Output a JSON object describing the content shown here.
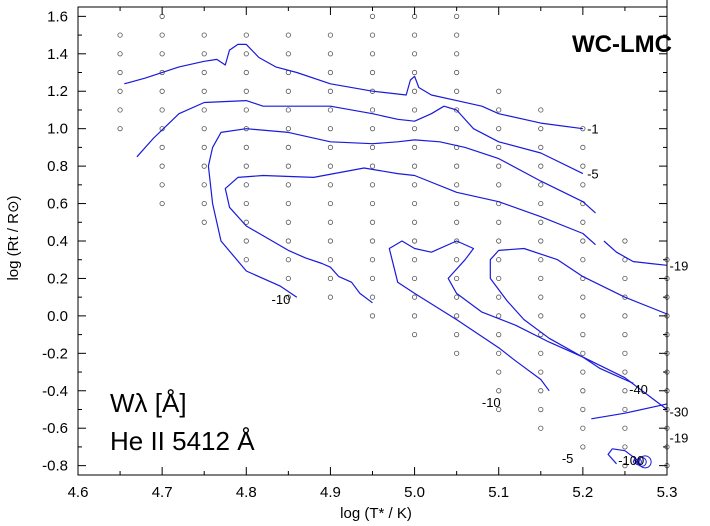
{
  "chart_data": {
    "type": "line",
    "title": "WC-LMC",
    "xlabel": "log (T* / K)",
    "ylabel": "log (Rt / R⊙)",
    "xlim": [
      4.6,
      5.3
    ],
    "ylim": [
      -0.85,
      1.65
    ],
    "xticks": [
      "4.6",
      "4.7",
      "4.8",
      "4.9",
      "5.0",
      "5.1",
      "5.2",
      "5.3"
    ],
    "yticks": [
      "1.6",
      "1.4",
      "1.2",
      "1.0",
      "0.8",
      "0.6",
      "0.4",
      "0.2",
      "0.0",
      "-0.2",
      "-0.4",
      "-0.6",
      "-0.8"
    ],
    "annotations": {
      "quantity": "Wλ [Å]",
      "line": "He II 5412 Å"
    },
    "grid": false,
    "line_color": "#1a1adc",
    "model_marker_color": "#555555",
    "model_grid": {
      "x": [
        4.65,
        4.7,
        4.75,
        4.8,
        4.85,
        4.9,
        4.95,
        5.0,
        5.05,
        5.1,
        5.15,
        5.2,
        5.25,
        5.3
      ],
      "y_range": [
        [
          1.0,
          1.5
        ],
        [
          0.6,
          1.6
        ],
        [
          0.5,
          1.5
        ],
        [
          0.3,
          1.5
        ],
        [
          0.1,
          1.5
        ],
        [
          0.1,
          1.5
        ],
        [
          0.0,
          1.6
        ],
        [
          -0.1,
          1.6
        ],
        [
          -0.2,
          1.6
        ],
        [
          -0.5,
          1.2
        ],
        [
          -0.6,
          1.1
        ],
        [
          -0.7,
          1.0
        ],
        [
          -0.8,
          0.4
        ],
        [
          -0.8,
          0.3
        ]
      ],
      "step": 0.1
    },
    "series": [
      {
        "name": "-1",
        "values": [
          [
            4.655,
            1.24
          ],
          [
            4.68,
            1.27
          ],
          [
            4.72,
            1.33
          ],
          [
            4.75,
            1.36
          ],
          [
            4.765,
            1.37
          ],
          [
            4.775,
            1.34
          ],
          [
            4.78,
            1.42
          ],
          [
            4.79,
            1.45
          ],
          [
            4.8,
            1.45
          ],
          [
            4.815,
            1.38
          ],
          [
            4.835,
            1.33
          ],
          [
            4.86,
            1.3
          ],
          [
            4.9,
            1.24
          ],
          [
            4.95,
            1.2
          ],
          [
            4.99,
            1.18
          ],
          [
            4.995,
            1.26
          ],
          [
            5.0,
            1.28
          ],
          [
            5.005,
            1.22
          ],
          [
            5.02,
            1.18
          ],
          [
            5.05,
            1.15
          ],
          [
            5.08,
            1.12
          ],
          [
            5.1,
            1.08
          ],
          [
            5.15,
            1.03
          ],
          [
            5.2,
            1.0
          ]
        ]
      },
      {
        "name": "-5",
        "values": [
          [
            4.67,
            0.85
          ],
          [
            4.69,
            0.95
          ],
          [
            4.72,
            1.08
          ],
          [
            4.75,
            1.14
          ],
          [
            4.8,
            1.15
          ],
          [
            4.82,
            1.12
          ],
          [
            4.85,
            1.12
          ],
          [
            4.9,
            1.12
          ],
          [
            4.95,
            1.08
          ],
          [
            4.98,
            1.05
          ],
          [
            5.0,
            1.04
          ],
          [
            5.02,
            1.08
          ],
          [
            5.035,
            1.12
          ],
          [
            5.05,
            1.1
          ],
          [
            5.07,
            1.0
          ],
          [
            5.1,
            0.93
          ],
          [
            5.15,
            0.87
          ],
          [
            5.2,
            0.76
          ]
        ]
      },
      {
        "name": "-10",
        "values": [
          [
            4.86,
            0.1
          ],
          [
            4.84,
            0.16
          ],
          [
            4.8,
            0.24
          ],
          [
            4.77,
            0.4
          ],
          [
            4.76,
            0.6
          ],
          [
            4.755,
            0.8
          ],
          [
            4.76,
            0.9
          ],
          [
            4.77,
            0.98
          ],
          [
            4.8,
            1.0
          ],
          [
            4.85,
            0.98
          ],
          [
            4.9,
            0.93
          ],
          [
            4.95,
            0.92
          ],
          [
            4.98,
            0.93
          ],
          [
            5.0,
            0.94
          ],
          [
            5.03,
            0.93
          ],
          [
            5.06,
            0.9
          ],
          [
            5.1,
            0.84
          ],
          [
            5.15,
            0.72
          ],
          [
            5.2,
            0.61
          ],
          [
            5.215,
            0.55
          ]
        ]
      },
      {
        "name": "-19",
        "values": [
          [
            4.95,
            0.07
          ],
          [
            4.935,
            0.12
          ],
          [
            4.925,
            0.18
          ],
          [
            4.91,
            0.21
          ],
          [
            4.9,
            0.26
          ],
          [
            4.89,
            0.28
          ],
          [
            4.87,
            0.31
          ],
          [
            4.85,
            0.35
          ],
          [
            4.8,
            0.48
          ],
          [
            4.78,
            0.58
          ],
          [
            4.775,
            0.68
          ],
          [
            4.79,
            0.74
          ],
          [
            4.82,
            0.75
          ],
          [
            4.88,
            0.74
          ],
          [
            4.94,
            0.79
          ],
          [
            4.98,
            0.76
          ],
          [
            5.0,
            0.75
          ],
          [
            5.05,
            0.66
          ],
          [
            5.1,
            0.61
          ],
          [
            5.15,
            0.53
          ],
          [
            5.2,
            0.44
          ],
          [
            5.215,
            0.38
          ]
        ]
      },
      {
        "name": "-19",
        "values": [
          [
            5.225,
            0.4
          ],
          [
            5.24,
            0.34
          ],
          [
            5.26,
            0.29
          ],
          [
            5.28,
            0.28
          ],
          [
            5.3,
            0.27
          ]
        ]
      },
      {
        "name": "-10",
        "values": [
          [
            5.16,
            -0.4
          ],
          [
            5.15,
            -0.34
          ],
          [
            5.12,
            -0.24
          ],
          [
            5.1,
            -0.17
          ],
          [
            5.05,
            -0.02
          ],
          [
            5.0,
            0.12
          ],
          [
            4.98,
            0.18
          ],
          [
            4.97,
            0.36
          ],
          [
            4.985,
            0.4
          ],
          [
            5.0,
            0.36
          ],
          [
            5.02,
            0.34
          ],
          [
            5.05,
            0.4
          ],
          [
            5.07,
            0.36
          ],
          [
            5.06,
            0.3
          ],
          [
            5.04,
            0.2
          ],
          [
            5.05,
            0.12
          ],
          [
            5.08,
            0.02
          ],
          [
            5.12,
            -0.05
          ],
          [
            5.16,
            -0.14
          ],
          [
            5.2,
            -0.22
          ],
          [
            5.25,
            -0.33
          ],
          [
            5.3,
            -0.5
          ]
        ]
      },
      {
        "name": "-40",
        "values": [
          [
            5.26,
            -0.36
          ],
          [
            5.22,
            -0.28
          ],
          [
            5.2,
            -0.22
          ],
          [
            5.16,
            -0.12
          ],
          [
            5.13,
            -0.02
          ],
          [
            5.11,
            0.08
          ],
          [
            5.09,
            0.2
          ],
          [
            5.09,
            0.3
          ],
          [
            5.1,
            0.35
          ],
          [
            5.13,
            0.36
          ],
          [
            5.17,
            0.3
          ],
          [
            5.2,
            0.21
          ],
          [
            5.25,
            0.1
          ],
          [
            5.3,
            0.01
          ]
        ]
      },
      {
        "name": "-30",
        "values": [
          [
            5.21,
            -0.55
          ],
          [
            5.25,
            -0.52
          ],
          [
            5.3,
            -0.47
          ]
        ]
      },
      {
        "name": "-5",
        "values": [
          [
            5.24,
            -0.79
          ],
          [
            5.23,
            -0.74
          ],
          [
            5.235,
            -0.71
          ],
          [
            5.25,
            -0.72
          ],
          [
            5.262,
            -0.76
          ],
          [
            5.26,
            -0.78
          ]
        ]
      }
    ],
    "contour_labels": [
      {
        "text": "-1",
        "x": 5.205,
        "y": 1.0
      },
      {
        "text": "-5",
        "x": 5.205,
        "y": 0.76
      },
      {
        "text": "-19",
        "x": 5.303,
        "y": 0.27
      },
      {
        "text": "-10",
        "x": 4.83,
        "y": 0.09
      },
      {
        "text": "-40",
        "x": 5.255,
        "y": -0.39
      },
      {
        "text": "-30",
        "x": 5.303,
        "y": -0.51
      },
      {
        "text": "-19",
        "x": 5.303,
        "y": -0.65
      },
      {
        "text": "-10",
        "x": 5.08,
        "y": -0.46
      },
      {
        "text": "-5",
        "x": 5.175,
        "y": -0.76
      },
      {
        "text": "-100",
        "x": 5.242,
        "y": -0.77
      }
    ]
  }
}
